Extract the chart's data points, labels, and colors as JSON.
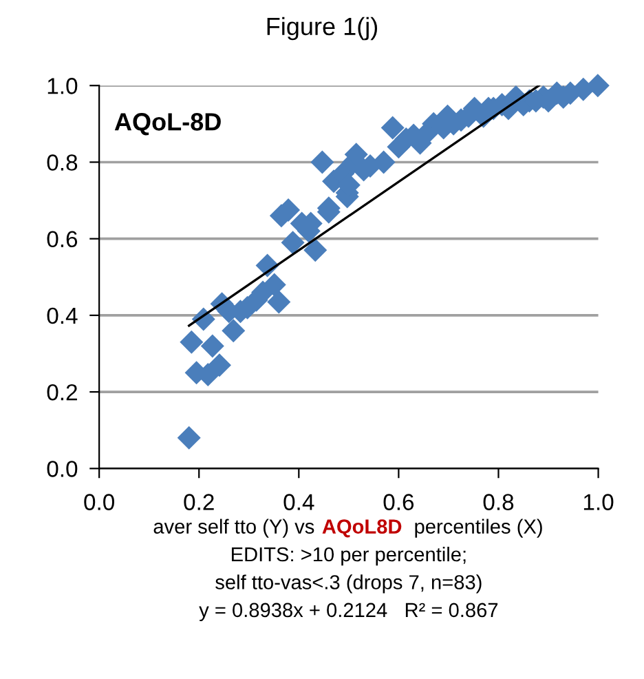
{
  "chart_data": {
    "type": "scatter",
    "title": "Figure 1(j)",
    "annotations": [
      "AQoL-8D",
      "aver self tto (Y) vs ",
      "AQoL8D",
      "  percentiles (X)",
      "EDITS: >10 per percentile;",
      "self tto-vas<.3 (drops 7, n=83)",
      "y = 0.8938x + 0.2124   R² = 0.867"
    ],
    "series": [
      {
        "color": "#4a7ebb",
        "x": [
          0.18,
          0.185,
          0.195,
          0.209,
          0.218,
          0.227,
          0.241,
          0.246,
          0.26,
          0.269,
          0.283,
          0.297,
          0.315,
          0.328,
          0.337,
          0.351,
          0.36,
          0.365,
          0.379,
          0.388,
          0.406,
          0.42,
          0.433,
          0.424,
          0.447,
          0.46,
          0.47,
          0.488,
          0.497,
          0.51,
          0.46,
          0.497,
          0.515,
          0.543,
          0.57,
          0.588,
          0.615,
          0.643,
          0.67,
          0.698,
          0.725,
          0.752,
          0.78,
          0.807,
          0.835,
          0.862,
          0.89,
          0.917,
          0.944,
          0.97,
          0.999,
          0.5,
          0.53,
          0.6,
          0.63,
          0.66,
          0.69,
          0.71,
          0.74,
          0.77,
          0.79,
          0.82,
          0.85,
          0.875,
          0.9,
          0.93
        ],
        "values": [
          0.08,
          0.33,
          0.25,
          0.39,
          0.245,
          0.32,
          0.27,
          0.43,
          0.41,
          0.36,
          0.41,
          0.42,
          0.44,
          0.46,
          0.53,
          0.48,
          0.435,
          0.66,
          0.675,
          0.59,
          0.64,
          0.62,
          0.57,
          0.64,
          0.8,
          0.67,
          0.75,
          0.77,
          0.71,
          0.8,
          0.68,
          0.72,
          0.82,
          0.79,
          0.8,
          0.89,
          0.86,
          0.85,
          0.9,
          0.92,
          0.91,
          0.94,
          0.94,
          0.95,
          0.97,
          0.96,
          0.97,
          0.98,
          0.98,
          0.99,
          1.0,
          0.74,
          0.78,
          0.84,
          0.87,
          0.88,
          0.89,
          0.9,
          0.92,
          0.92,
          0.94,
          0.94,
          0.95,
          0.96,
          0.96,
          0.97
        ],
        "marker": "diamond"
      },
      {
        "type": "line",
        "color": "#000000",
        "x": [
          0.18,
          0.881
        ],
        "values": [
          0.373,
          1.0
        ]
      }
    ],
    "xlim": [
      0,
      1
    ],
    "ylim": [
      0,
      1
    ],
    "xticks": [
      {
        "value": 0,
        "label": "0.0"
      },
      {
        "value": 0.2,
        "label": "0.2"
      },
      {
        "value": 0.4,
        "label": "0.4"
      },
      {
        "value": 0.6,
        "label": "0.6"
      },
      {
        "value": 0.8,
        "label": "0.8"
      },
      {
        "value": 1,
        "label": "1.0"
      }
    ],
    "yticks": [
      {
        "value": 0,
        "label": "0.0"
      },
      {
        "value": 0.2,
        "label": "0.2"
      },
      {
        "value": 0.4,
        "label": "0.4"
      },
      {
        "value": 0.6,
        "label": "0.6"
      },
      {
        "value": 0.8,
        "label": "0.8"
      },
      {
        "value": 1,
        "label": "1.0"
      }
    ],
    "grid": "y"
  }
}
